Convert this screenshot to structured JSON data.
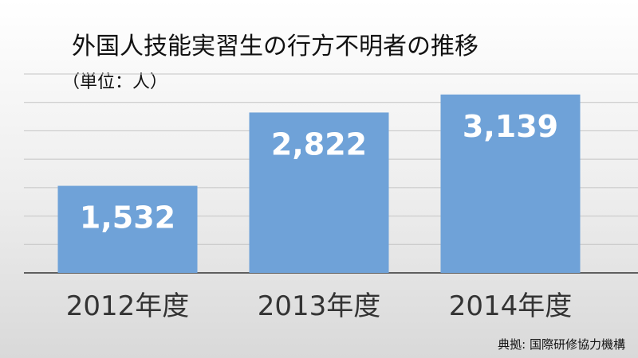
{
  "chart_data": {
    "type": "bar",
    "title": "外国人技能実習生の行方不明者の推移",
    "subtitle": "（単位：人）",
    "categories": [
      "2012年度",
      "2013年度",
      "2014年度"
    ],
    "values": [
      1532,
      2822,
      3139
    ],
    "value_labels": [
      "1,532",
      "2,822",
      "3,139"
    ],
    "ylim": [
      0,
      3500
    ],
    "grid": true,
    "legend": "none",
    "bar_color": "#6fa2d8",
    "source": "典拠: 国際研修協力機構"
  }
}
